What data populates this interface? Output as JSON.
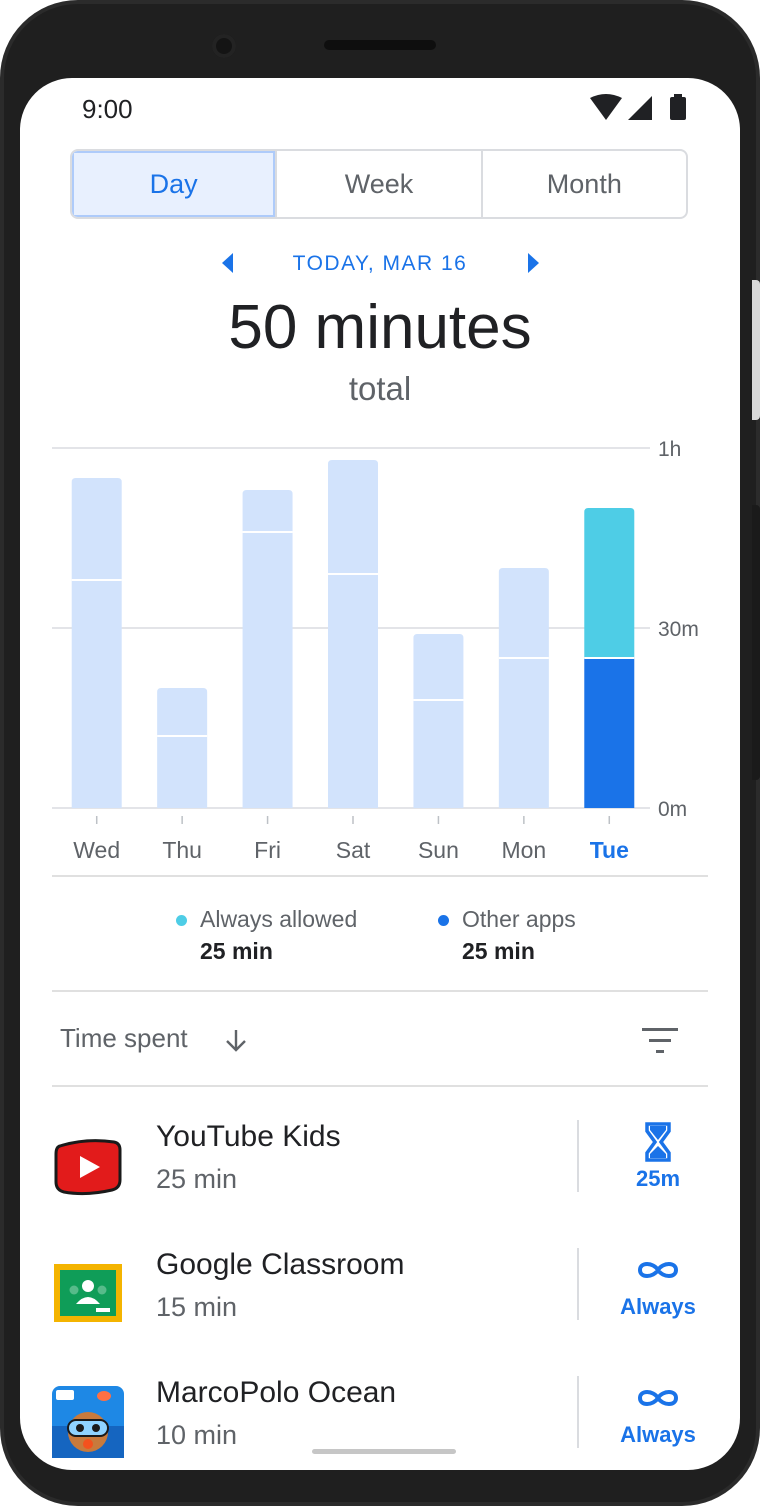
{
  "status_bar": {
    "time": "9:00"
  },
  "range_tabs": [
    {
      "label": "Day",
      "selected": true
    },
    {
      "label": "Week",
      "selected": false
    },
    {
      "label": "Month",
      "selected": false
    }
  ],
  "date_nav": {
    "label": "TODAY, MAR 16"
  },
  "summary": {
    "total": "50 minutes",
    "total_suffix": "total"
  },
  "chart_data": {
    "type": "bar",
    "stacked": true,
    "categories": [
      "Wed",
      "Thu",
      "Fri",
      "Sat",
      "Sun",
      "Mon",
      "Tue"
    ],
    "highlighted_category": "Tue",
    "series": [
      {
        "name": "Other apps",
        "values": [
          38,
          12,
          46,
          39,
          18,
          25,
          25
        ]
      },
      {
        "name": "Always allowed",
        "values": [
          17,
          8,
          7,
          19,
          11,
          15,
          25
        ]
      }
    ],
    "y_ticks": [
      "1h",
      "30m",
      "0m"
    ],
    "ylim": [
      0,
      60
    ],
    "colors": {
      "past": "#d2e3fc",
      "always_allowed": "#4ecde6",
      "other_apps": "#1a73e8",
      "highlight_label": "#1a73e8"
    }
  },
  "legend": [
    {
      "label": "Always allowed",
      "value": "25 min",
      "color": "#4ecde6"
    },
    {
      "label": "Other apps",
      "value": "25 min",
      "color": "#1a73e8"
    }
  ],
  "sort": {
    "label": "Time spent",
    "icon": "arrow-down-icon",
    "filter_icon": "filter-icon"
  },
  "apps": [
    {
      "name": "YouTube Kids",
      "time": "25 min",
      "limit_label": "25m",
      "limit_icon": "hourglass-icon"
    },
    {
      "name": "Google Classroom",
      "time": "15 min",
      "limit_label": "Always",
      "limit_icon": "infinity-icon"
    },
    {
      "name": "MarcoPolo Ocean",
      "time": "10 min",
      "limit_label": "Always",
      "limit_icon": "infinity-icon"
    }
  ]
}
